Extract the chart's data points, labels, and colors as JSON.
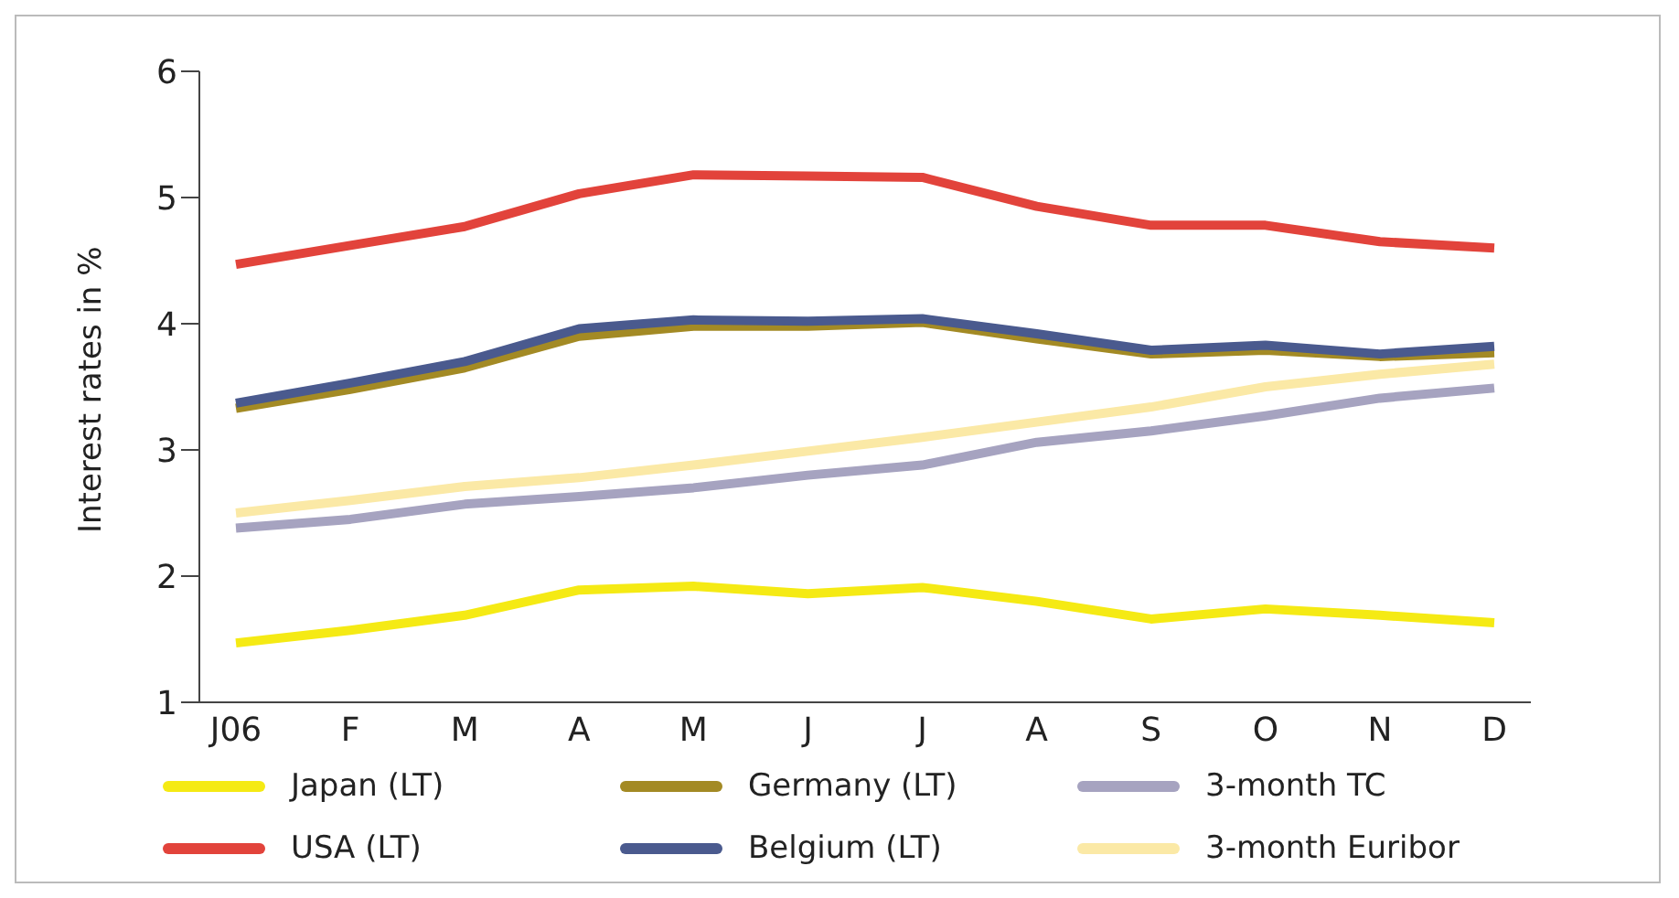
{
  "chart_data": {
    "type": "line",
    "ylabel": "Interest rates in %",
    "categories": [
      "J06",
      "F",
      "M",
      "A",
      "M",
      "J",
      "J",
      "A",
      "S",
      "O",
      "N",
      "D"
    ],
    "ylim": [
      1,
      6
    ],
    "yticks": [
      1,
      2,
      3,
      4,
      5,
      6
    ],
    "grid": false,
    "legend": "bottom",
    "marker": "none",
    "line_style": "solid",
    "series": [
      {
        "name": "Japan (LT)",
        "color": "#f5ea14",
        "values": [
          1.47,
          1.57,
          1.69,
          1.89,
          1.92,
          1.86,
          1.91,
          1.8,
          1.66,
          1.74,
          1.69,
          1.63
        ]
      },
      {
        "name": "Germany (LT)",
        "color": "#a38a24",
        "values": [
          3.33,
          3.48,
          3.65,
          3.9,
          3.98,
          3.98,
          4.01,
          3.88,
          3.76,
          3.79,
          3.74,
          3.77
        ]
      },
      {
        "name": "3-month TC",
        "color": "#a6a3c0",
        "values": [
          2.38,
          2.45,
          2.57,
          2.63,
          2.7,
          2.8,
          2.88,
          3.06,
          3.15,
          3.27,
          3.41,
          3.49
        ]
      },
      {
        "name": "USA (LT)",
        "color": "#e2433b",
        "values": [
          4.47,
          4.62,
          4.77,
          5.03,
          5.18,
          5.17,
          5.16,
          4.93,
          4.78,
          4.78,
          4.65,
          4.6
        ]
      },
      {
        "name": "Belgium (LT)",
        "color": "#4a5a8e",
        "values": [
          3.37,
          3.53,
          3.7,
          3.96,
          4.03,
          4.02,
          4.04,
          3.92,
          3.79,
          3.83,
          3.76,
          3.82
        ]
      },
      {
        "name": "3-month Euribor",
        "color": "#fbe9a6",
        "values": [
          2.5,
          2.6,
          2.71,
          2.78,
          2.88,
          2.99,
          3.1,
          3.22,
          3.34,
          3.5,
          3.6,
          3.68
        ]
      }
    ]
  }
}
